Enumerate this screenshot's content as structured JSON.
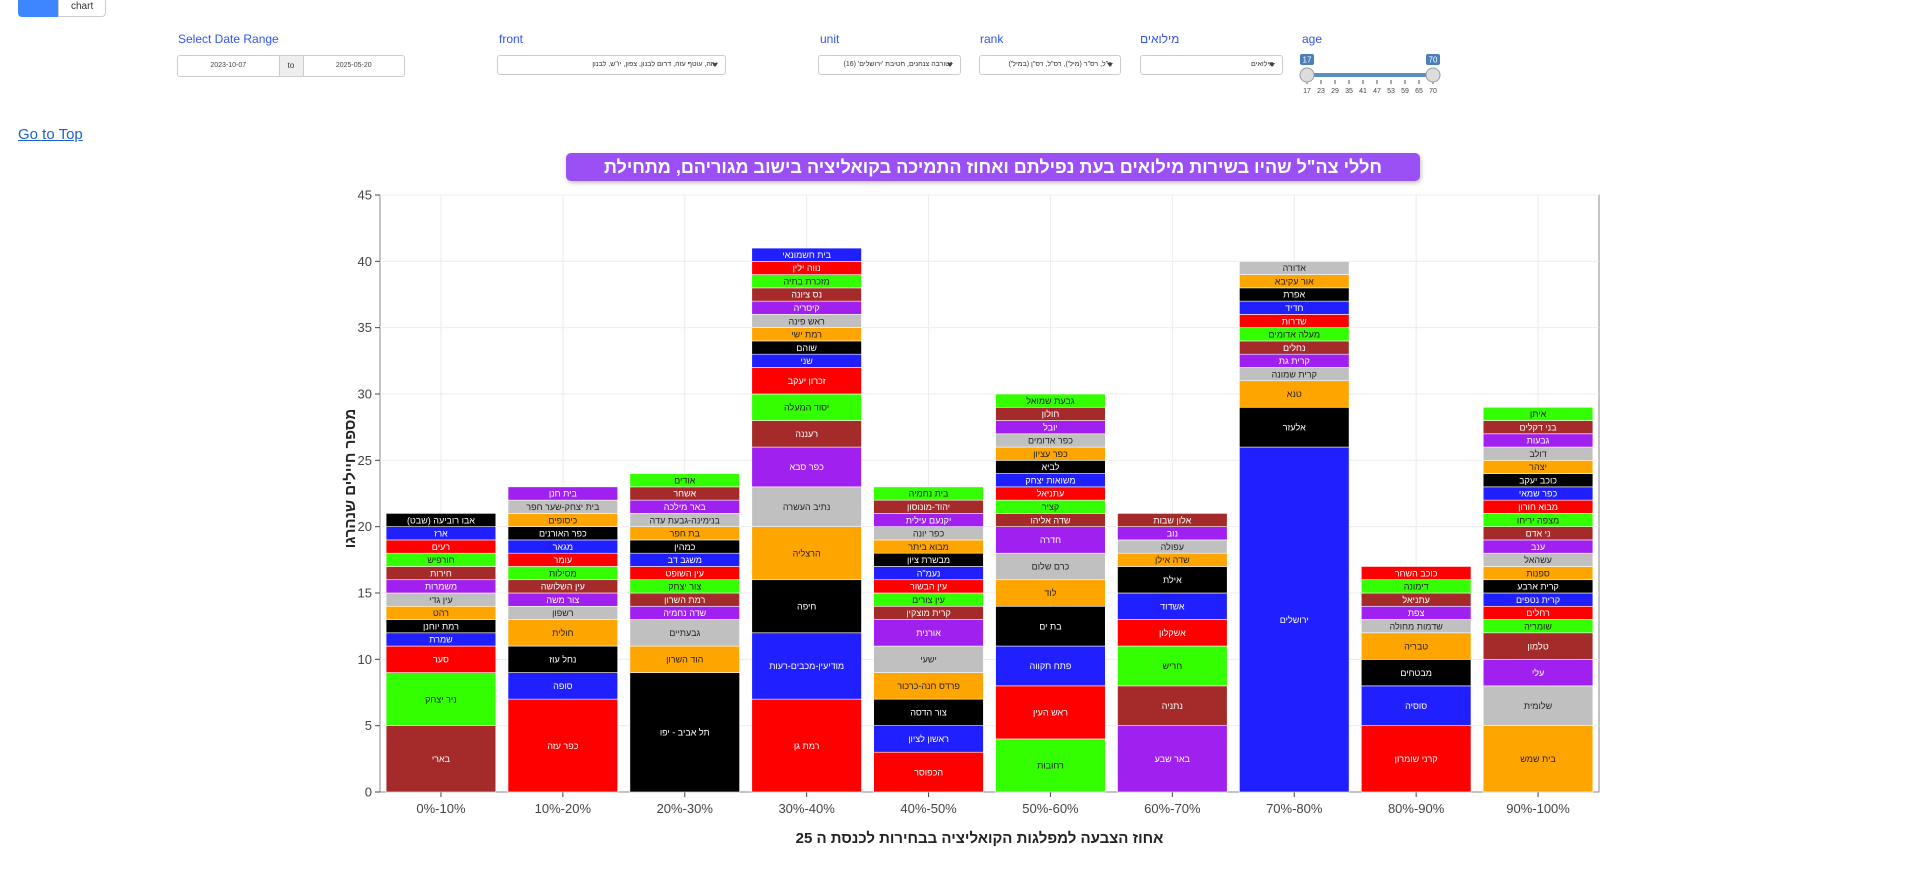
{
  "tabs": {
    "chart_label": "chart"
  },
  "filters": {
    "date_range": {
      "label": "Select Date Range",
      "from": "2023-10-07",
      "to_label": "to",
      "to": "2025-05-20"
    },
    "front": {
      "label": "front",
      "value": "עזה, עוטף עזה, דרום לבנון, צפון, יו\"ש, לבנון"
    },
    "unit": {
      "label": "unit",
      "value": "זטורבה צנחנים, חטיבת 'ירושלים' (16)"
    },
    "rank": {
      "label": "rank",
      "value": "ר\"ל, רס\"ר (מיל'), רס\"ל, רס\"ן (במיל')"
    },
    "reserve": {
      "label": "מילואים",
      "value": "מילואים"
    },
    "age": {
      "label": "age",
      "min_value": "17",
      "max_value": "70",
      "ticks": [
        "17",
        "23",
        "29",
        "35",
        "41",
        "47",
        "53",
        "59",
        "65",
        "70"
      ]
    }
  },
  "nav": {
    "go_to_top": "Go to Top"
  },
  "colors": {
    "accent": "#3D86FF",
    "title_bg": "#9a50f5"
  },
  "chart_data": {
    "type": "bar",
    "stacked": true,
    "title": "חללי צה\"ל שהיו בשירות מילואים בעת נפילתם ואחוז התמיכה בקואליציה בישוב מגוריהם, מתחילת המלחמה",
    "xlabel": "אחוז הצבעה למפלגות הקואליציה בבחירות לכנסת ה 25",
    "ylabel": "מספר חיילים שנהרגו",
    "ylim": [
      0,
      45
    ],
    "yticks": [
      0,
      5,
      10,
      15,
      20,
      25,
      30,
      35,
      40,
      45
    ],
    "categories": [
      "0%-10%",
      "10%-20%",
      "20%-30%",
      "30%-40%",
      "40%-50%",
      "50%-60%",
      "60%-70%",
      "70%-80%",
      "80%-90%",
      "90%-100%"
    ],
    "stacks": [
      [
        {
          "name": "בארי",
          "value": 5,
          "color": "#A52A2A"
        },
        {
          "name": "ניר יצחק",
          "value": 4,
          "color": "#33FF00"
        },
        {
          "name": "סער",
          "value": 2,
          "color": "#FF0000"
        },
        {
          "name": "שמרת",
          "value": 1,
          "color": "#1F1FFF"
        },
        {
          "name": "רמת יוחנן",
          "value": 1,
          "color": "#000000"
        },
        {
          "name": "רהט",
          "value": 1,
          "color": "#FFA500"
        },
        {
          "name": "עין גדי",
          "value": 1,
          "color": "#C0C0C0"
        },
        {
          "name": "משמרות",
          "value": 1,
          "color": "#A020F0"
        },
        {
          "name": "חירות",
          "value": 1,
          "color": "#A52A2A"
        },
        {
          "name": "חורפיש",
          "value": 1,
          "color": "#33FF00"
        },
        {
          "name": "רעים",
          "value": 1,
          "color": "#FF0000"
        },
        {
          "name": "ארז",
          "value": 1,
          "color": "#1F1FFF"
        },
        {
          "name": "אבו רוביעה (שבט)",
          "value": 1,
          "color": "#000000"
        }
      ],
      [
        {
          "name": "כפר עזה",
          "value": 7,
          "color": "#FF0000"
        },
        {
          "name": "סופה",
          "value": 2,
          "color": "#1F1FFF"
        },
        {
          "name": "נחל עוז",
          "value": 2,
          "color": "#000000"
        },
        {
          "name": "חולית",
          "value": 2,
          "color": "#FFA500"
        },
        {
          "name": "רשפון",
          "value": 1,
          "color": "#C0C0C0"
        },
        {
          "name": "צור משה",
          "value": 1,
          "color": "#A020F0"
        },
        {
          "name": "עין השלושה",
          "value": 1,
          "color": "#A52A2A"
        },
        {
          "name": "מסילות",
          "value": 1,
          "color": "#33FF00"
        },
        {
          "name": "עומר",
          "value": 1,
          "color": "#FF0000"
        },
        {
          "name": "מגאר",
          "value": 1,
          "color": "#1F1FFF"
        },
        {
          "name": "כפר האורנים",
          "value": 1,
          "color": "#000000"
        },
        {
          "name": "כיסופים",
          "value": 1,
          "color": "#FFA500"
        },
        {
          "name": "בית יצחק-שער חפר",
          "value": 1,
          "color": "#C0C0C0"
        },
        {
          "name": "בית חנן",
          "value": 1,
          "color": "#A020F0"
        }
      ],
      [
        {
          "name": "תל אביב - יפו",
          "value": 9,
          "color": "#000000"
        },
        {
          "name": "הוד השרון",
          "value": 2,
          "color": "#FFA500"
        },
        {
          "name": "גבעתיים",
          "value": 2,
          "color": "#C0C0C0"
        },
        {
          "name": "שדה נחמיה",
          "value": 1,
          "color": "#A020F0"
        },
        {
          "name": "רמת השרון",
          "value": 1,
          "color": "#A52A2A"
        },
        {
          "name": "צור יצחק",
          "value": 1,
          "color": "#33FF00"
        },
        {
          "name": "עין השופט",
          "value": 1,
          "color": "#FF0000"
        },
        {
          "name": "משגב דב",
          "value": 1,
          "color": "#1F1FFF"
        },
        {
          "name": "כמהין",
          "value": 1,
          "color": "#000000"
        },
        {
          "name": "בת חפר",
          "value": 1,
          "color": "#FFA500"
        },
        {
          "name": "בנימינה-גבעת עדה",
          "value": 1,
          "color": "#C0C0C0"
        },
        {
          "name": "באר מילכה",
          "value": 1,
          "color": "#A020F0"
        },
        {
          "name": "אשחר",
          "value": 1,
          "color": "#A52A2A"
        },
        {
          "name": "אודים",
          "value": 1,
          "color": "#33FF00"
        }
      ],
      [
        {
          "name": "רמת גן",
          "value": 7,
          "color": "#FF0000"
        },
        {
          "name": "מודיעין-מכבים-רעות",
          "value": 5,
          "color": "#1F1FFF"
        },
        {
          "name": "חיפה",
          "value": 4,
          "color": "#000000"
        },
        {
          "name": "הרצליה",
          "value": 4,
          "color": "#FFA500"
        },
        {
          "name": "נתיב העשרה",
          "value": 3,
          "color": "#C0C0C0"
        },
        {
          "name": "כפר סבא",
          "value": 3,
          "color": "#A020F0"
        },
        {
          "name": "רעננה",
          "value": 2,
          "color": "#A52A2A"
        },
        {
          "name": "יסוד המעלה",
          "value": 2,
          "color": "#33FF00"
        },
        {
          "name": "זכרון יעקב",
          "value": 2,
          "color": "#FF0000"
        },
        {
          "name": "שני",
          "value": 1,
          "color": "#1F1FFF"
        },
        {
          "name": "שוהם",
          "value": 1,
          "color": "#000000"
        },
        {
          "name": "רמת ישי",
          "value": 1,
          "color": "#FFA500"
        },
        {
          "name": "ראש פינה",
          "value": 1,
          "color": "#C0C0C0"
        },
        {
          "name": "קיסריה",
          "value": 1,
          "color": "#A020F0"
        },
        {
          "name": "נס ציונה",
          "value": 1,
          "color": "#A52A2A"
        },
        {
          "name": "מזכרת בתיה",
          "value": 1,
          "color": "#33FF00"
        },
        {
          "name": "נווה ילין",
          "value": 1,
          "color": "#FF0000"
        },
        {
          "name": "בית חשמונאי",
          "value": 1,
          "color": "#1F1FFF"
        }
      ],
      [
        {
          "name": "הכפוסר",
          "value": 3,
          "color": "#FF0000"
        },
        {
          "name": "ראשון לציון",
          "value": 2,
          "color": "#1F1FFF"
        },
        {
          "name": "צור הדסה",
          "value": 2,
          "color": "#000000"
        },
        {
          "name": "פרדס חנה-כרכור",
          "value": 2,
          "color": "#FFA500"
        },
        {
          "name": "ישעי",
          "value": 2,
          "color": "#C0C0C0"
        },
        {
          "name": "אורנית",
          "value": 2,
          "color": "#A020F0"
        },
        {
          "name": "קרית מוצקין",
          "value": 1,
          "color": "#A52A2A"
        },
        {
          "name": "עין צורים",
          "value": 1,
          "color": "#33FF00"
        },
        {
          "name": "עין הבשור",
          "value": 1,
          "color": "#FF0000"
        },
        {
          "name": "נעמ\"ה",
          "value": 1,
          "color": "#1F1FFF"
        },
        {
          "name": "מבשרת ציון",
          "value": 1,
          "color": "#000000"
        },
        {
          "name": "מבוא ביתר",
          "value": 1,
          "color": "#FFA500"
        },
        {
          "name": "כפר יונה",
          "value": 1,
          "color": "#C0C0C0"
        },
        {
          "name": "יקנעם עילית",
          "value": 1,
          "color": "#A020F0"
        },
        {
          "name": "יהוד-מונוסון",
          "value": 1,
          "color": "#A52A2A"
        },
        {
          "name": "בית נחמיה",
          "value": 1,
          "color": "#33FF00"
        }
      ],
      [
        {
          "name": "רחובות",
          "value": 4,
          "color": "#33FF00"
        },
        {
          "name": "ראש העין",
          "value": 4,
          "color": "#FF0000"
        },
        {
          "name": "פתח תקווה",
          "value": 3,
          "color": "#1F1FFF"
        },
        {
          "name": "בת ים",
          "value": 3,
          "color": "#000000"
        },
        {
          "name": "לוד",
          "value": 2,
          "color": "#FFA500"
        },
        {
          "name": "כרם שלום",
          "value": 2,
          "color": "#C0C0C0"
        },
        {
          "name": "חדרה",
          "value": 2,
          "color": "#A020F0"
        },
        {
          "name": "שדה אליהו",
          "value": 1,
          "color": "#A52A2A"
        },
        {
          "name": "קציר",
          "value": 1,
          "color": "#33FF00"
        },
        {
          "name": "עתניאל",
          "value": 1,
          "color": "#FF0000"
        },
        {
          "name": "משואות יצחק",
          "value": 1,
          "color": "#1F1FFF"
        },
        {
          "name": "לביא",
          "value": 1,
          "color": "#000000"
        },
        {
          "name": "כפר עציון",
          "value": 1,
          "color": "#FFA500"
        },
        {
          "name": "כפר אדומים",
          "value": 1,
          "color": "#C0C0C0"
        },
        {
          "name": "יובל",
          "value": 1,
          "color": "#A020F0"
        },
        {
          "name": "חולון",
          "value": 1,
          "color": "#A52A2A"
        },
        {
          "name": "גבעת שמואל",
          "value": 1,
          "color": "#33FF00"
        }
      ],
      [
        {
          "name": "באר שבע",
          "value": 5,
          "color": "#A020F0"
        },
        {
          "name": "נתניה",
          "value": 3,
          "color": "#A52A2A"
        },
        {
          "name": "חריש",
          "value": 3,
          "color": "#33FF00"
        },
        {
          "name": "אשקלון",
          "value": 2,
          "color": "#FF0000"
        },
        {
          "name": "אשדוד",
          "value": 2,
          "color": "#1F1FFF"
        },
        {
          "name": "אילת",
          "value": 2,
          "color": "#000000"
        },
        {
          "name": "שדה אילן",
          "value": 1,
          "color": "#FFA500"
        },
        {
          "name": "עפולה",
          "value": 1,
          "color": "#C0C0C0"
        },
        {
          "name": "נוב",
          "value": 1,
          "color": "#A020F0"
        },
        {
          "name": "אלון שבות",
          "value": 1,
          "color": "#A52A2A"
        }
      ],
      [
        {
          "name": "ירושלים",
          "value": 26,
          "color": "#1F1FFF"
        },
        {
          "name": "אלעזר",
          "value": 3,
          "color": "#000000"
        },
        {
          "name": "טנא",
          "value": 2,
          "color": "#FFA500"
        },
        {
          "name": "קרית שמונה",
          "value": 1,
          "color": "#C0C0C0"
        },
        {
          "name": "קרית גת",
          "value": 1,
          "color": "#A020F0"
        },
        {
          "name": "נחלים",
          "value": 1,
          "color": "#A52A2A"
        },
        {
          "name": "מעלה אדומים",
          "value": 1,
          "color": "#33FF00"
        },
        {
          "name": "שדרות",
          "value": 1,
          "color": "#FF0000"
        },
        {
          "name": "חדיד",
          "value": 1,
          "color": "#1F1FFF"
        },
        {
          "name": "אפרת",
          "value": 1,
          "color": "#000000"
        },
        {
          "name": "אור עקיבא",
          "value": 1,
          "color": "#FFA500"
        },
        {
          "name": "אדורה",
          "value": 1,
          "color": "#C0C0C0"
        }
      ],
      [
        {
          "name": "קרני שומרון",
          "value": 5,
          "color": "#FF0000"
        },
        {
          "name": "סוסיה",
          "value": 3,
          "color": "#1F1FFF"
        },
        {
          "name": "מבטחים",
          "value": 2,
          "color": "#000000"
        },
        {
          "name": "טבריה",
          "value": 2,
          "color": "#FFA500"
        },
        {
          "name": "שדמות מחולה",
          "value": 1,
          "color": "#C0C0C0"
        },
        {
          "name": "צפת",
          "value": 1,
          "color": "#A020F0"
        },
        {
          "name": "עתניאל",
          "value": 1,
          "color": "#A52A2A"
        },
        {
          "name": "דימונה",
          "value": 1,
          "color": "#33FF00"
        },
        {
          "name": "כוכב השחר",
          "value": 1,
          "color": "#FF0000"
        }
      ],
      [
        {
          "name": "בית שמש",
          "value": 5,
          "color": "#FFA500"
        },
        {
          "name": "שלומית",
          "value": 3,
          "color": "#C0C0C0"
        },
        {
          "name": "עלי",
          "value": 2,
          "color": "#A020F0"
        },
        {
          "name": "טלמון",
          "value": 2,
          "color": "#A52A2A"
        },
        {
          "name": "שומריה",
          "value": 1,
          "color": "#33FF00"
        },
        {
          "name": "רחלים",
          "value": 1,
          "color": "#FF0000"
        },
        {
          "name": "קרית נטפים",
          "value": 1,
          "color": "#1F1FFF"
        },
        {
          "name": "קרית ארבע",
          "value": 1,
          "color": "#000000"
        },
        {
          "name": "ספנות",
          "value": 1,
          "color": "#FFA500"
        },
        {
          "name": "עשהאל",
          "value": 1,
          "color": "#C0C0C0"
        },
        {
          "name": "ענב",
          "value": 1,
          "color": "#A020F0"
        },
        {
          "name": "ני אדם",
          "value": 1,
          "color": "#A52A2A"
        },
        {
          "name": "מצפה יריחו",
          "value": 1,
          "color": "#33FF00"
        },
        {
          "name": "מבוא חורון",
          "value": 1,
          "color": "#FF0000"
        },
        {
          "name": "כפר שמאי",
          "value": 1,
          "color": "#1F1FFF"
        },
        {
          "name": "כוכב יעקב",
          "value": 1,
          "color": "#000000"
        },
        {
          "name": "יצהר",
          "value": 1,
          "color": "#FFA500"
        },
        {
          "name": "דולב",
          "value": 1,
          "color": "#C0C0C0"
        },
        {
          "name": "גבעות",
          "value": 1,
          "color": "#A020F0"
        },
        {
          "name": "בני דקלים",
          "value": 1,
          "color": "#A52A2A"
        },
        {
          "name": "איתן",
          "value": 1,
          "color": "#33FF00"
        }
      ]
    ]
  }
}
